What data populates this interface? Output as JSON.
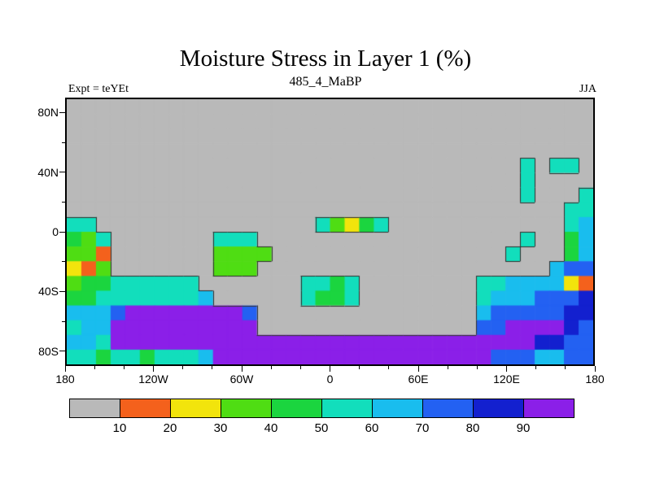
{
  "header": {
    "title": "Moisture Stress in Layer 1 (%)",
    "subtitle": "485_4_MaBP",
    "left_annotation": "Expt = teYEt",
    "right_annotation": "JJA"
  },
  "chart_data": {
    "type": "heatmap",
    "title": "Moisture Stress in Layer 1 (%)",
    "subtitle": "485_4_MaBP",
    "annotations": [
      "Expt = teYEt",
      "JJA"
    ],
    "x_axis": {
      "range": [
        -180,
        180
      ],
      "tick_values": [
        -180,
        -120,
        -60,
        0,
        60,
        120,
        180
      ],
      "tick_labels": [
        "180",
        "120W",
        "60W",
        "0",
        "60E",
        "120E",
        "180"
      ],
      "minor_tick_values": [
        -160,
        -140,
        -100,
        -80,
        -40,
        -20,
        20,
        40,
        80,
        100,
        140,
        160
      ]
    },
    "y_axis": {
      "range": [
        -90,
        90
      ],
      "tick_values": [
        80,
        40,
        0,
        -40,
        -80
      ],
      "tick_labels": [
        "80N",
        "40N",
        "0",
        "40S",
        "80S"
      ],
      "minor_tick_values": [
        60,
        20,
        -20,
        -60
      ]
    },
    "legend": {
      "position": "bottom",
      "labels": [
        "10",
        "20",
        "30",
        "40",
        "50",
        "60",
        "70",
        "80",
        "90"
      ],
      "colors": [
        "#b9b9b9",
        "#f4611c",
        "#f2e40c",
        "#4fdd13",
        "#1bd53f",
        "#12debc",
        "#19bdee",
        "#2361f2",
        "#1320cf",
        "#8b1fe8"
      ]
    },
    "grid": {
      "cols": 36,
      "rows": 18,
      "cell_deg": 10,
      "codes": [
        "000000000000000000000000000000000000",
        "000000000000000000000000000000000000",
        "000000000000000000000000000000000000",
        "000000000000000000000000000000000000",
        "000000000000000000000000000000050550",
        "000000000000000000000000000000050000",
        "000000000000000000000000000000050005",
        "000000000000000000000000000000000055",
        "550000000000000005324500000000000056",
        "435000000055500000000000000000050046",
        "331000000033330000000000000000500046",
        "213000000033300000000000000000000677",
        "344555555000000055450000000055666621",
        "445555555600000054450000000056667778",
        "666799999999700000000000000067777788",
        "566999999999900000000000000077999987",
        "665999999999999999999999999999998877",
        "554554555699999999999999999997776677"
      ]
    }
  }
}
